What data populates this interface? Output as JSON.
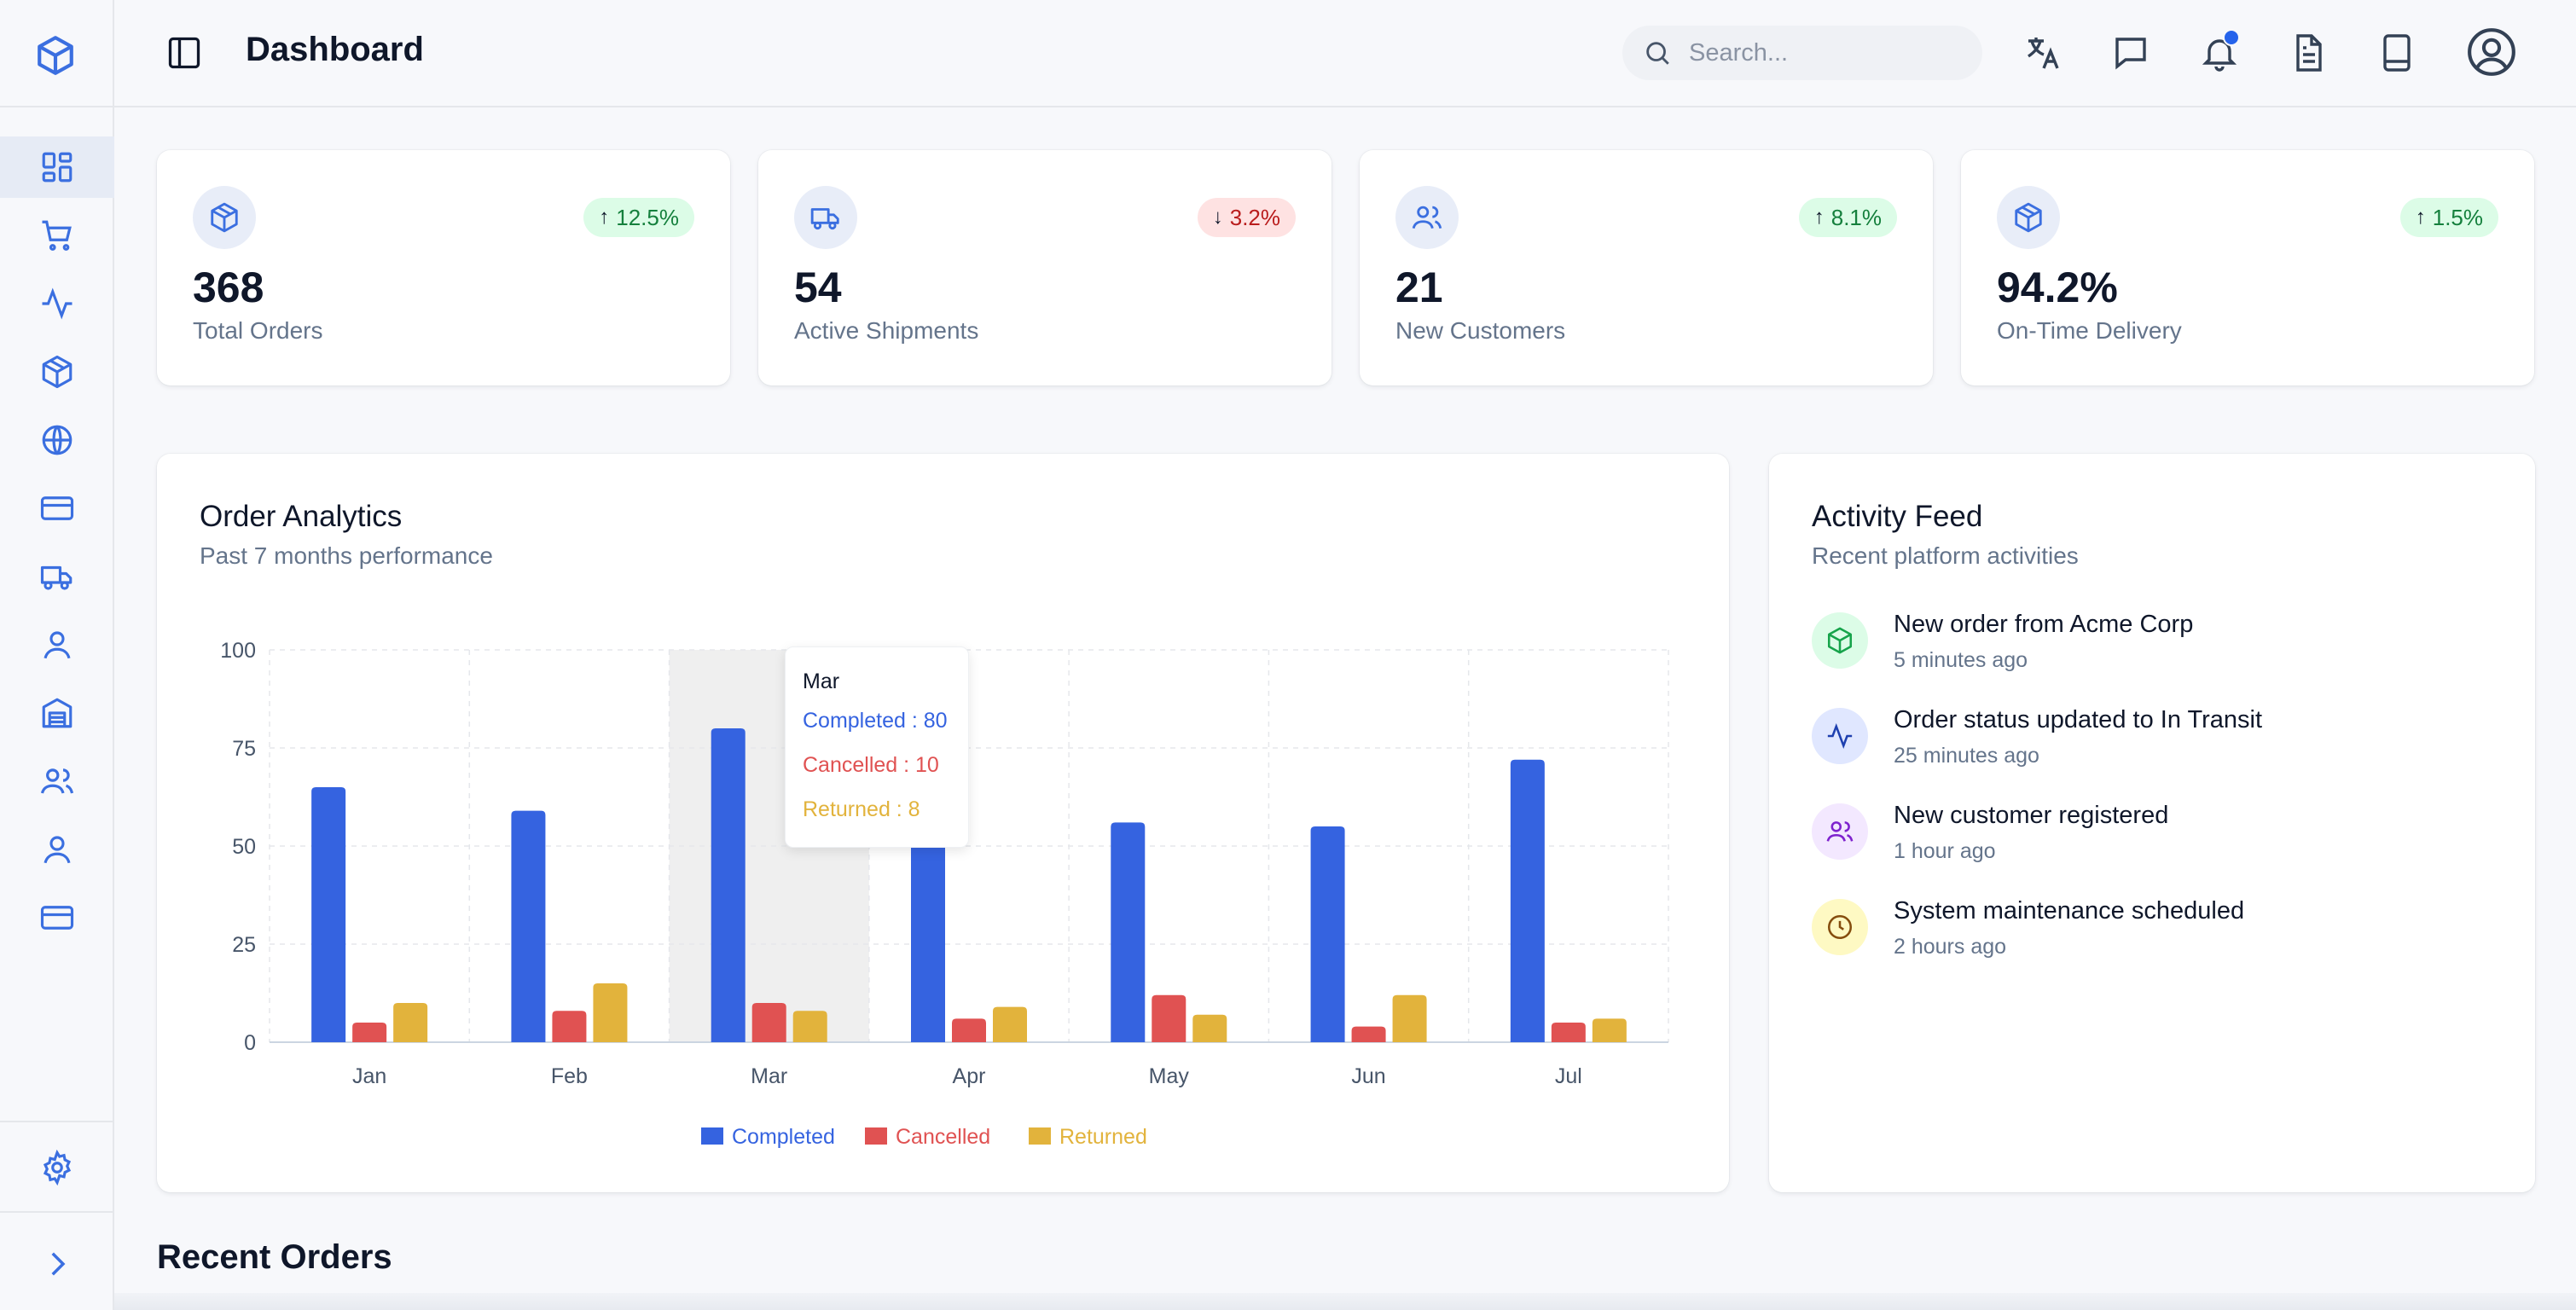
{
  "header": {
    "title": "Dashboard",
    "search_placeholder": "Search..."
  },
  "sidebar": {
    "items": [
      {
        "icon": "dashboard-icon",
        "active": true
      },
      {
        "icon": "cart-icon"
      },
      {
        "icon": "activity-icon"
      },
      {
        "icon": "package-icon"
      },
      {
        "icon": "globe-icon"
      },
      {
        "icon": "credit-card-icon"
      },
      {
        "icon": "truck-icon"
      },
      {
        "icon": "user-icon"
      },
      {
        "icon": "warehouse-icon"
      },
      {
        "icon": "users-icon"
      },
      {
        "icon": "user-icon"
      },
      {
        "icon": "credit-card-icon"
      }
    ],
    "bottom": [
      {
        "icon": "gear-icon"
      },
      {
        "icon": "chevron-right-icon"
      }
    ]
  },
  "stats": [
    {
      "value": "368",
      "label": "Total Orders",
      "change": "12.5%",
      "trend": "up",
      "icon": "package-icon"
    },
    {
      "value": "54",
      "label": "Active Shipments",
      "change": "3.2%",
      "trend": "down",
      "icon": "truck-icon"
    },
    {
      "value": "21",
      "label": "New Customers",
      "change": "8.1%",
      "trend": "up",
      "icon": "users-icon"
    },
    {
      "value": "94.2%",
      "label": "On-Time Delivery",
      "change": "1.5%",
      "trend": "up",
      "icon": "package-icon"
    }
  ],
  "analytics": {
    "title": "Order Analytics",
    "subtitle": "Past 7 months performance",
    "tooltip": {
      "month": "Mar",
      "completed": "Completed : 80",
      "cancelled": "Cancelled : 10",
      "returned": "Returned : 8"
    }
  },
  "chart_data": {
    "type": "bar",
    "categories": [
      "Jan",
      "Feb",
      "Mar",
      "Apr",
      "May",
      "Jun",
      "Jul"
    ],
    "series": [
      {
        "name": "Completed",
        "color": "#3563e0",
        "values": [
          65,
          59,
          80,
          81,
          56,
          55,
          72
        ]
      },
      {
        "name": "Cancelled",
        "color": "#e05252",
        "values": [
          5,
          8,
          10,
          6,
          12,
          4,
          5
        ]
      },
      {
        "name": "Returned",
        "color": "#e2b33c",
        "values": [
          10,
          15,
          8,
          9,
          7,
          12,
          6
        ]
      }
    ],
    "ylim": [
      0,
      100
    ],
    "yticks": [
      0,
      25,
      50,
      75,
      100
    ],
    "grid": true,
    "legend": "bottom-center",
    "highlighted_category": "Mar"
  },
  "activity": {
    "title": "Activity Feed",
    "subtitle": "Recent platform activities",
    "items": [
      {
        "text_a": "New order",
        "text_b": " from ",
        "text_c": "Acme Corp",
        "time": "5 minutes ago",
        "icon": "package-icon",
        "bg": "#dcfce7",
        "fg": "#16a34a"
      },
      {
        "text_a": "Order status updated",
        "text_b": " to ",
        "text_c": "In Transit",
        "time": "25 minutes ago",
        "icon": "activity-icon",
        "bg": "#e0e7ff",
        "fg": "#1e40af"
      },
      {
        "text_a": "New customer",
        "text_b": " registered",
        "text_c": "",
        "time": "1 hour ago",
        "icon": "users-icon",
        "bg": "#f3e8ff",
        "fg": "#7e22ce"
      },
      {
        "text_a": "System maintenance",
        "text_b": " scheduled",
        "text_c": "",
        "time": "2 hours ago",
        "icon": "clock-icon",
        "bg": "#fef9c3",
        "fg": "#854d0e"
      }
    ]
  },
  "recent_orders": {
    "title": "Recent Orders"
  }
}
